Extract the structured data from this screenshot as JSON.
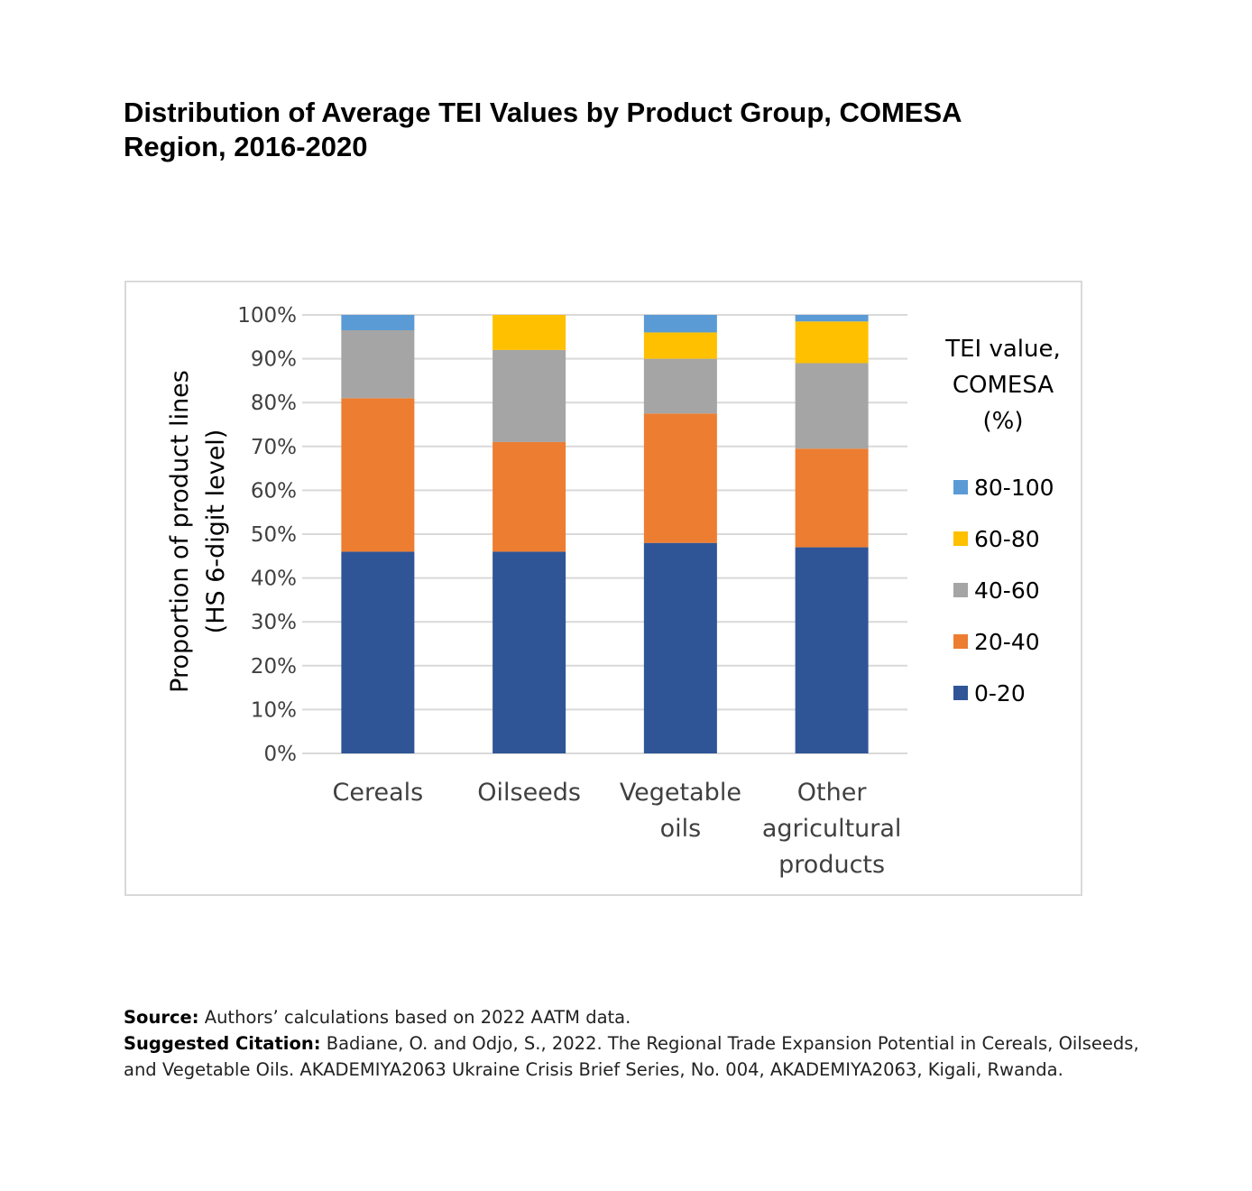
{
  "title_lines": [
    "Distribution of Average TEI Values by Product Group, COMESA",
    "Region, 2016-2020"
  ],
  "chart_data": {
    "type": "bar",
    "stacked": true,
    "categories": [
      [
        "Cereals"
      ],
      [
        "Oilseeds"
      ],
      [
        "Vegetable",
        "oils"
      ],
      [
        "Other",
        "agricultural",
        "products"
      ]
    ],
    "series": [
      {
        "name": "0-20",
        "color": "#2f5597",
        "values": [
          46,
          46,
          48,
          47
        ]
      },
      {
        "name": "20-40",
        "color": "#ed7d31",
        "values": [
          35,
          25,
          29.5,
          22.5
        ]
      },
      {
        "name": "40-60",
        "color": "#a5a5a5",
        "values": [
          15.5,
          21,
          12.5,
          19.5
        ]
      },
      {
        "name": "60-80",
        "color": "#ffc000",
        "values": [
          0,
          8,
          6,
          9.5
        ]
      },
      {
        "name": "80-100",
        "color": "#5b9bd5",
        "values": [
          3.5,
          0,
          4,
          1.5
        ]
      }
    ],
    "ylabel_lines": [
      "Proportion of product lines",
      "(HS 6-digit level)"
    ],
    "yticks": [
      "0%",
      "10%",
      "20%",
      "30%",
      "40%",
      "50%",
      "60%",
      "70%",
      "80%",
      "90%",
      "100%"
    ],
    "ylim": [
      0,
      100
    ],
    "grid": true,
    "legend_title_lines": [
      "TEI value,",
      "COMESA",
      "(%)"
    ],
    "legend_position": "right"
  },
  "footer": {
    "source_label": "Source:",
    "source_text": "Authors’ calculations based on 2022 AATM data.",
    "citation_label": "Suggested Citation:",
    "citation_text": "Badiane, O. and Odjo, S., 2022. The Regional Trade Expansion Potential in Cereals, Oilseeds,",
    "citation_text_2": "and Vegetable Oils. AKADEMIYA2063 Ukraine Crisis Brief Series, No. 004, AKADEMIYA2063, Kigali, Rwanda."
  }
}
